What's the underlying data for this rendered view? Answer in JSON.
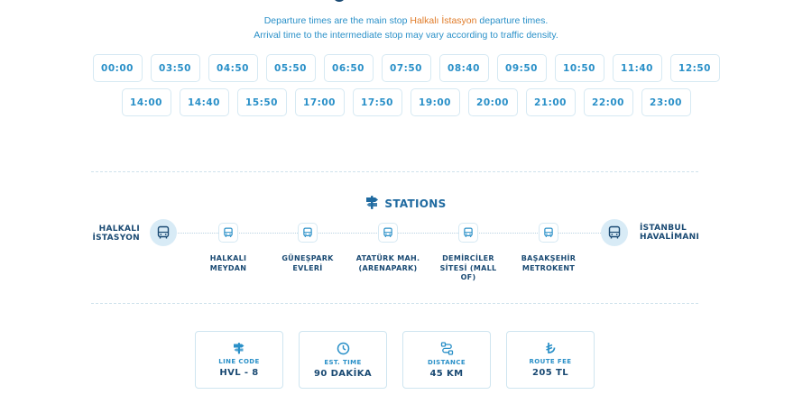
{
  "info": {
    "line1_prefix": "Departure times are the main stop ",
    "line1_highlight": "Halkalı İstasyon",
    "line1_suffix": " departure times.",
    "line2": "Arrival time to the intermediate stop may vary according to traffic density."
  },
  "departure_times": [
    "00:00",
    "03:50",
    "04:50",
    "05:50",
    "06:50",
    "07:50",
    "08:40",
    "09:50",
    "10:50",
    "11:40",
    "12:50",
    "14:00",
    "14:40",
    "15:50",
    "17:00",
    "17:50",
    "19:00",
    "20:00",
    "21:00",
    "22:00",
    "23:00"
  ],
  "stations": {
    "title": "STATIONS",
    "start": "HALKALI İSTASYON",
    "end": "İSTANBUL HAVALİMANI",
    "intermediate": [
      "HALKALI MEYDAN",
      "GÜNEŞPARK EVLERİ",
      "ATATÜRK MAH. (ARENAPARK)",
      "DEMİRCİLER SİTESİ (MALL OF)",
      "BAŞAKŞEHİR METROKENT"
    ]
  },
  "details": [
    {
      "icon": "signpost-icon",
      "label": "LINE CODE",
      "value": "HVL - 8"
    },
    {
      "icon": "timer-icon",
      "label": "EST. TIME",
      "value": "90 DAKİKA"
    },
    {
      "icon": "route-icon",
      "label": "DISTANCE",
      "value": "45 KM"
    },
    {
      "icon": "lira-icon",
      "label": "ROUTE FEE",
      "value": "205 TL"
    }
  ],
  "colors": {
    "accent": "#2a90c8",
    "dark": "#1a4a73",
    "highlight": "#e07b28"
  }
}
